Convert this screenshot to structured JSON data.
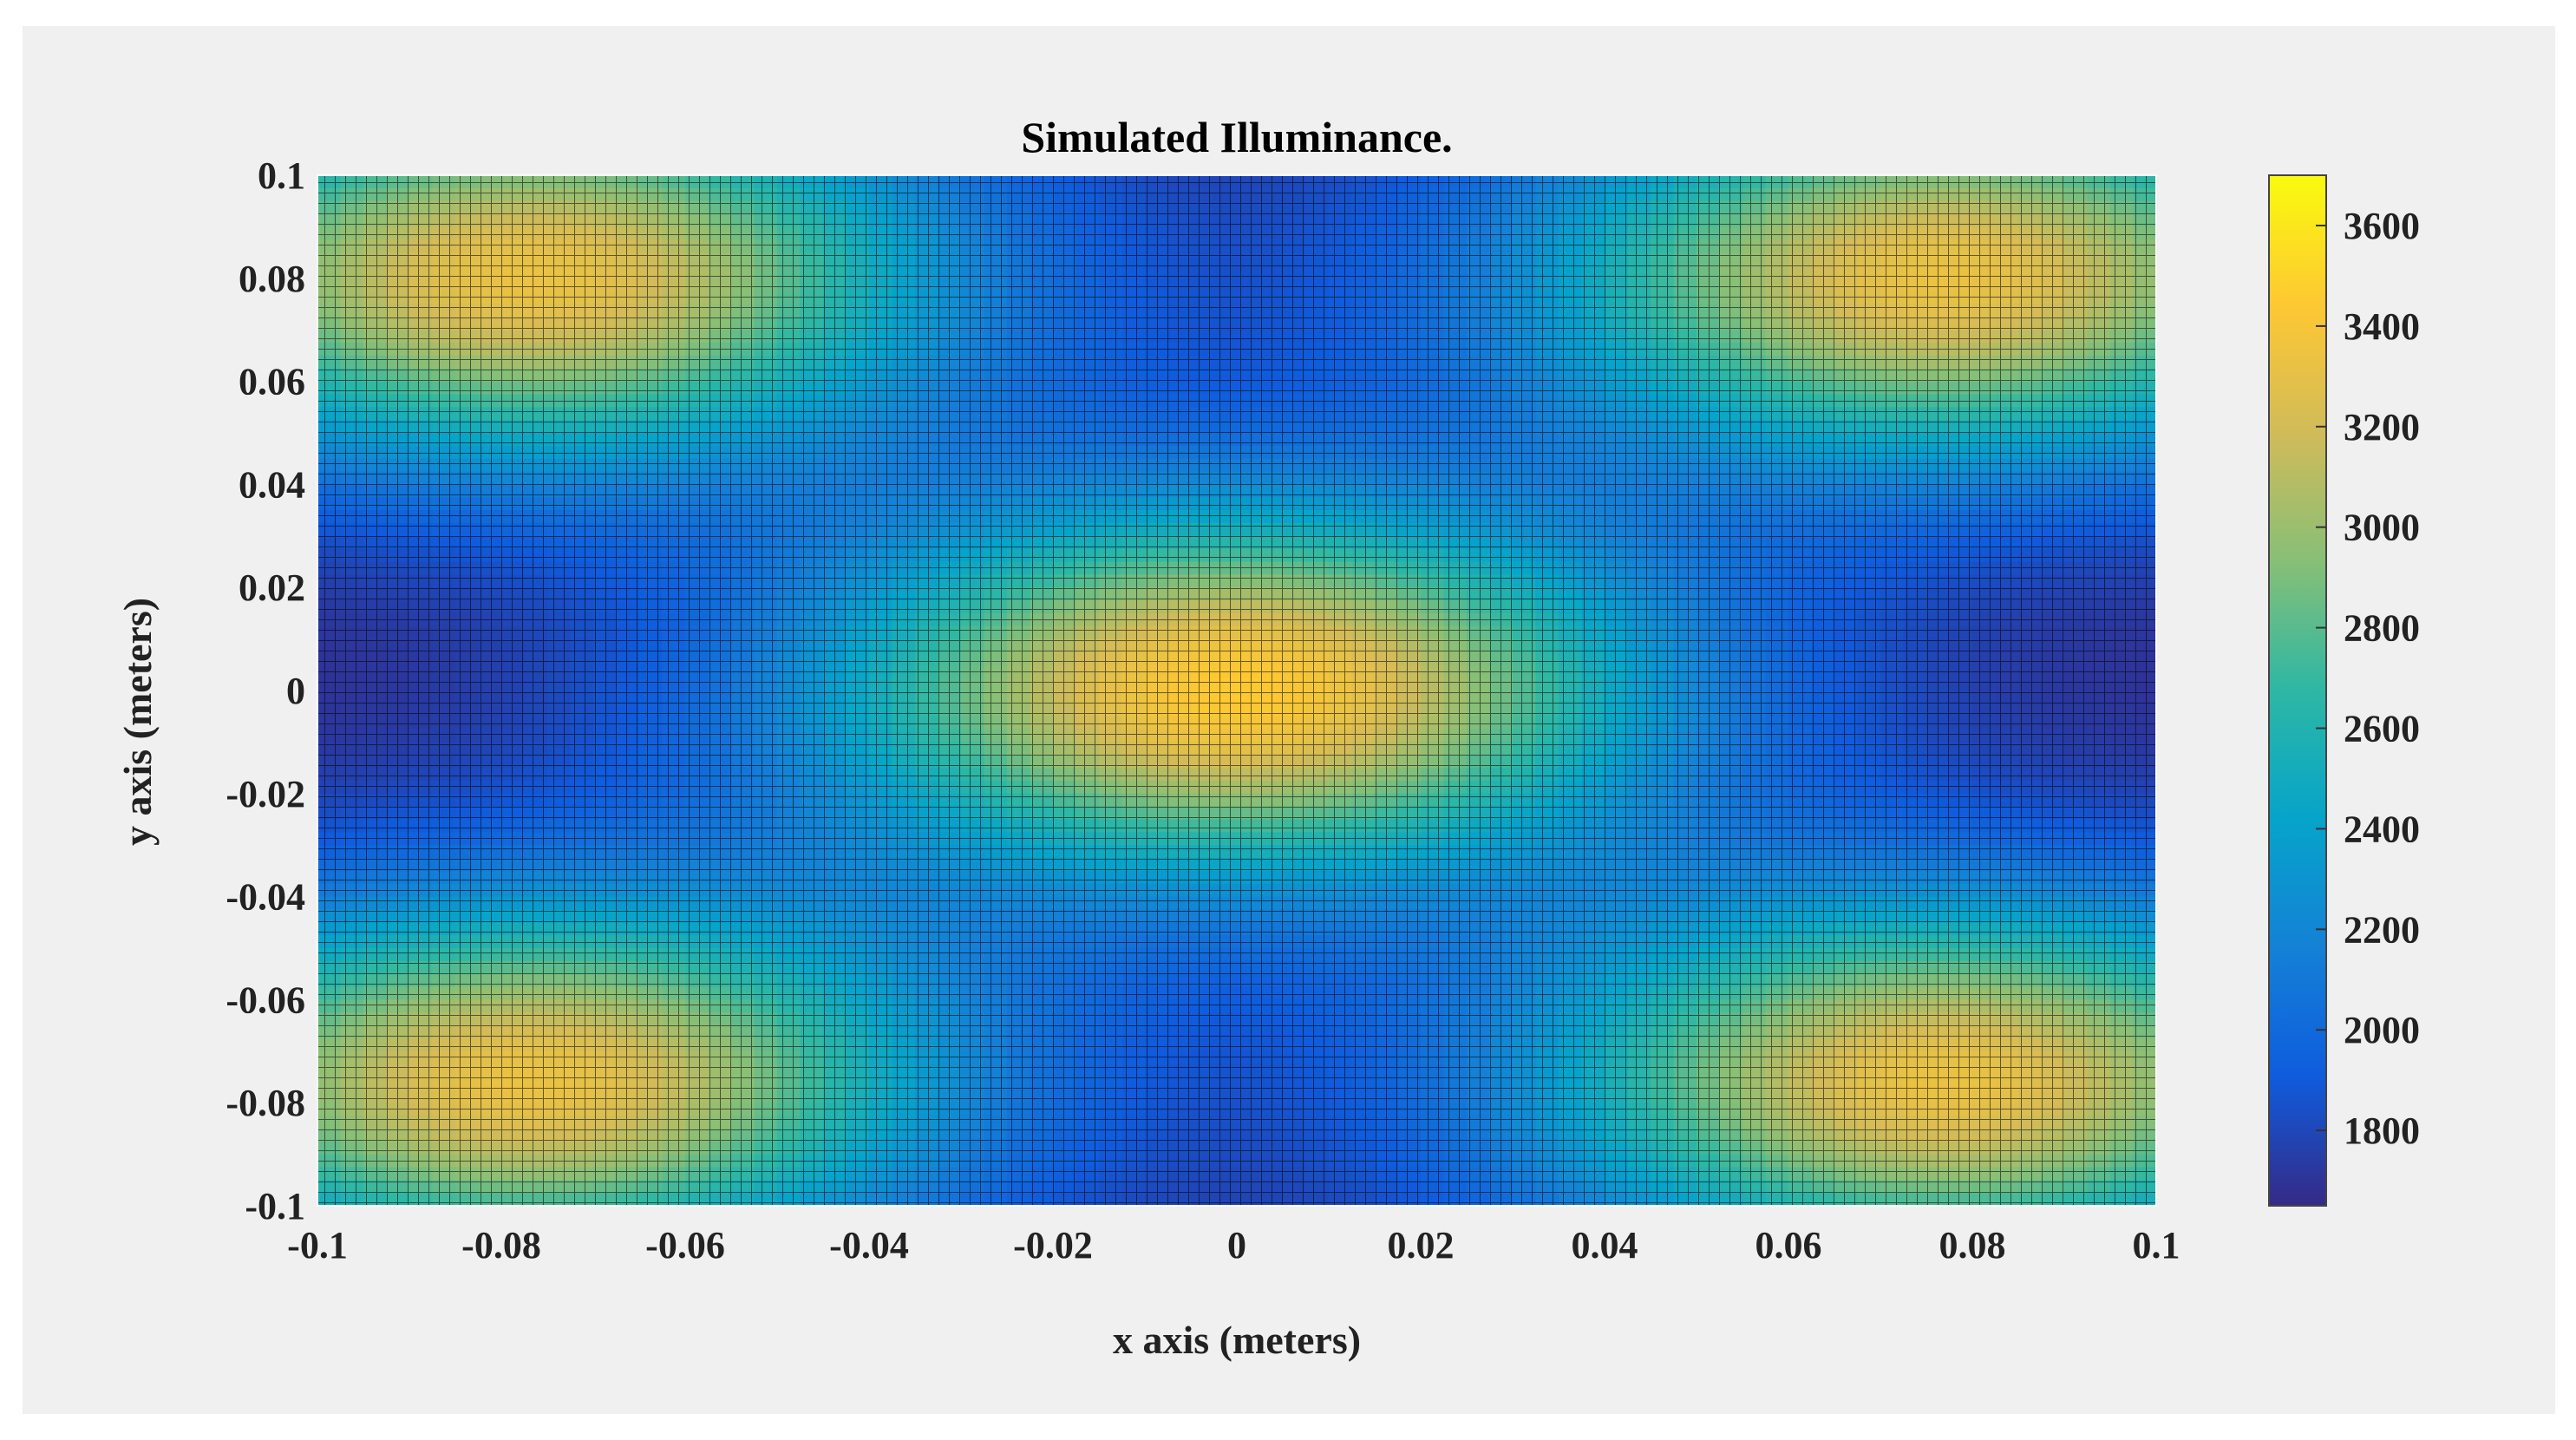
{
  "chart_data": {
    "type": "heatmap",
    "title": "Simulated Illuminance.",
    "xlabel": "x axis (meters)",
    "ylabel": "y axis (meters)",
    "xlim": [
      -0.1,
      0.1
    ],
    "ylim": [
      -0.1,
      0.1
    ],
    "x_ticks": [
      "-0.1",
      "-0.08",
      "-0.06",
      "-0.04",
      "-0.02",
      "0",
      "0.02",
      "0.04",
      "0.06",
      "0.08",
      "0.1"
    ],
    "x_tick_values": [
      -0.1,
      -0.08,
      -0.06,
      -0.04,
      -0.02,
      0,
      0.02,
      0.04,
      0.06,
      0.08,
      0.1
    ],
    "y_ticks": [
      "0.1",
      "0.08",
      "0.06",
      "0.04",
      "0.02",
      "0",
      "-0.02",
      "-0.04",
      "-0.06",
      "-0.08",
      "-0.1"
    ],
    "y_tick_values": [
      0.1,
      0.08,
      0.06,
      0.04,
      0.02,
      0,
      -0.02,
      -0.04,
      -0.06,
      -0.08,
      -0.1
    ],
    "colorbar": {
      "range": [
        1650,
        3700
      ],
      "ticks": [
        "3600",
        "3400",
        "3200",
        "3000",
        "2800",
        "2600",
        "2400",
        "2200",
        "2000",
        "1800"
      ],
      "tick_values": [
        3600,
        3400,
        3200,
        3000,
        2800,
        2600,
        2400,
        2200,
        2000,
        1800
      ],
      "colormap": "parula",
      "colormap_stops": [
        "#352a87",
        "#0f5cdd",
        "#1481d6",
        "#06a4ca",
        "#2eb7a4",
        "#87bf77",
        "#d1bb59",
        "#fec832",
        "#f9fb0e"
      ]
    },
    "peaks": [
      {
        "x": -0.077,
        "y": 0.08,
        "value": 3330
      },
      {
        "x": 0.077,
        "y": 0.08,
        "value": 3330
      },
      {
        "x": -0.077,
        "y": -0.076,
        "value": 3330
      },
      {
        "x": 0.077,
        "y": -0.076,
        "value": 3330
      },
      {
        "x": 0.0,
        "y": 0.0,
        "value": 3450
      }
    ],
    "grid": true,
    "grid_color": "#000000",
    "legend": "none"
  }
}
